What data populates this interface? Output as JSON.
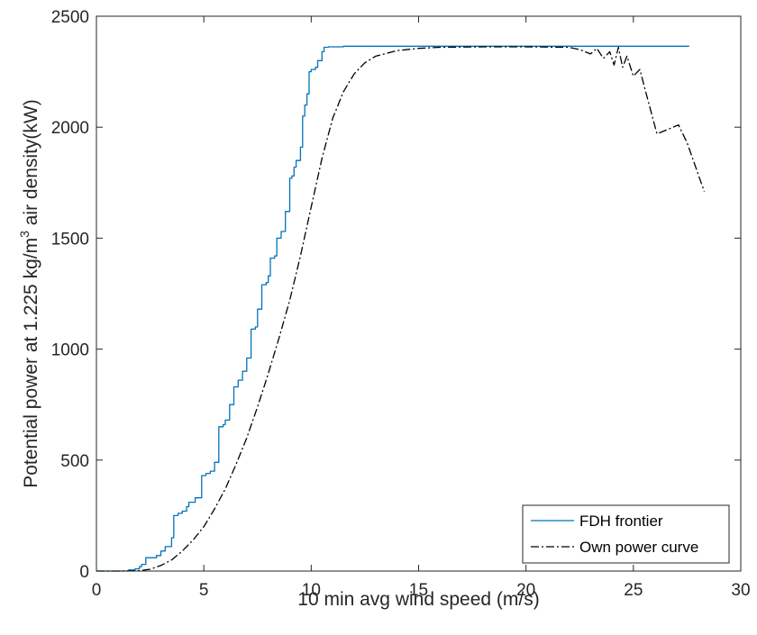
{
  "chart_data": {
    "type": "line",
    "xlabel": "10 min avg wind speed (m/s)",
    "ylabel_main": "Potential power at 1.225 kg/m",
    "ylabel_sup": "3",
    "ylabel_tail": " air density(kW)",
    "xlim": [
      0,
      30
    ],
    "ylim": [
      0,
      2500
    ],
    "xticks": [
      0,
      5,
      10,
      15,
      20,
      25,
      30
    ],
    "yticks": [
      0,
      500,
      1000,
      1500,
      2000,
      2500
    ],
    "grid": false,
    "legend_position": "bottom-right",
    "series": [
      {
        "name": "FDH frontier",
        "color": "#0072BD",
        "style": "solid",
        "shape": "step",
        "x": [
          0,
          1.5,
          1.8,
          2.0,
          2.1,
          2.3,
          2.8,
          3.0,
          3.2,
          3.5,
          3.6,
          3.8,
          4.0,
          4.2,
          4.3,
          4.6,
          4.9,
          5.1,
          5.3,
          5.5,
          5.7,
          5.9,
          6.0,
          6.2,
          6.4,
          6.6,
          6.8,
          7.0,
          7.2,
          7.4,
          7.5,
          7.7,
          7.9,
          8.0,
          8.1,
          8.3,
          8.4,
          8.6,
          8.8,
          9.0,
          9.1,
          9.2,
          9.3,
          9.5,
          9.6,
          9.7,
          9.8,
          9.9,
          10.0,
          10.2,
          10.3,
          10.5,
          10.6,
          10.8,
          11.5,
          12.0,
          27.6
        ],
        "y": [
          0,
          5,
          10,
          20,
          30,
          60,
          70,
          90,
          110,
          150,
          250,
          260,
          270,
          290,
          310,
          330,
          430,
          440,
          450,
          490,
          650,
          660,
          680,
          750,
          830,
          860,
          900,
          960,
          1090,
          1100,
          1180,
          1290,
          1300,
          1330,
          1410,
          1420,
          1500,
          1530,
          1620,
          1770,
          1780,
          1820,
          1850,
          1910,
          2050,
          2100,
          2150,
          2250,
          2260,
          2270,
          2300,
          2340,
          2360,
          2362,
          2365,
          2365,
          2365
        ]
      },
      {
        "name": "Own power curve",
        "color": "#000000",
        "style": "dashdot",
        "shape": "line",
        "x": [
          0,
          1,
          2,
          2.5,
          3,
          3.5,
          4,
          4.5,
          5,
          5.5,
          6,
          6.5,
          7,
          7.5,
          8,
          8.5,
          9,
          9.5,
          10,
          10.5,
          11,
          11.5,
          12,
          12.5,
          13,
          14,
          15,
          16,
          18,
          20,
          22,
          22.5,
          23,
          23.3,
          23.6,
          23.9,
          24.1,
          24.3,
          24.5,
          24.7,
          25.0,
          25.3,
          25.6,
          26.1,
          26.6,
          27.1,
          27.5,
          28.3
        ],
        "y": [
          0,
          0,
          2,
          8,
          25,
          50,
          90,
          140,
          200,
          280,
          370,
          480,
          600,
          740,
          890,
          1050,
          1220,
          1420,
          1640,
          1860,
          2040,
          2160,
          2240,
          2290,
          2320,
          2345,
          2355,
          2360,
          2362,
          2362,
          2360,
          2350,
          2330,
          2355,
          2310,
          2340,
          2280,
          2360,
          2270,
          2320,
          2230,
          2260,
          2150,
          1970,
          1990,
          2010,
          1930,
          1710
        ]
      }
    ]
  }
}
